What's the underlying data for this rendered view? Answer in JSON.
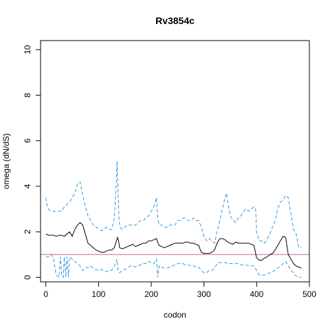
{
  "chart_data": {
    "type": "line",
    "title": "Rv3854c",
    "xlabel": "codon",
    "ylabel": "omega (dN/dS)",
    "xlim": [
      -10,
      500
    ],
    "ylim": [
      -0.2,
      10.4
    ],
    "xticks": [
      0,
      100,
      200,
      300,
      400,
      500
    ],
    "yticks": [
      0,
      2,
      4,
      6,
      8,
      10
    ],
    "grid": false,
    "reference_line": {
      "y": 1,
      "color": "#cc6699"
    },
    "colors": {
      "median": "#000000",
      "bounds": "#3399dd"
    },
    "series": [
      {
        "style": "solid",
        "x": [
          0,
          5,
          10,
          15,
          20,
          25,
          30,
          35,
          40,
          45,
          50,
          55,
          60,
          65,
          70,
          75,
          80,
          85,
          90,
          95,
          100,
          105,
          110,
          115,
          120,
          125,
          130,
          134,
          136,
          138,
          140,
          145,
          150,
          155,
          160,
          165,
          170,
          175,
          180,
          185,
          190,
          195,
          200,
          205,
          210,
          212,
          215,
          220,
          225,
          230,
          235,
          240,
          245,
          250,
          255,
          260,
          265,
          270,
          275,
          280,
          285,
          290,
          295,
          300,
          305,
          310,
          315,
          320,
          325,
          330,
          335,
          340,
          345,
          350,
          355,
          360,
          365,
          370,
          375,
          380,
          385,
          390,
          395,
          398,
          400,
          405,
          410,
          415,
          420,
          425,
          430,
          435,
          440,
          445,
          450,
          455,
          460,
          465,
          470,
          475,
          480,
          485
        ],
        "y": [
          1.9,
          1.85,
          1.85,
          1.85,
          1.8,
          1.85,
          1.85,
          1.8,
          1.9,
          2.0,
          1.8,
          2.1,
          2.3,
          2.4,
          2.3,
          1.9,
          1.5,
          1.4,
          1.3,
          1.2,
          1.15,
          1.1,
          1.1,
          1.15,
          1.2,
          1.2,
          1.3,
          1.6,
          1.75,
          1.6,
          1.3,
          1.25,
          1.3,
          1.35,
          1.4,
          1.45,
          1.35,
          1.4,
          1.45,
          1.5,
          1.5,
          1.6,
          1.6,
          1.65,
          1.7,
          1.55,
          1.4,
          1.35,
          1.3,
          1.35,
          1.4,
          1.45,
          1.5,
          1.5,
          1.5,
          1.5,
          1.55,
          1.55,
          1.5,
          1.5,
          1.45,
          1.4,
          1.1,
          1.05,
          1.05,
          1.05,
          1.1,
          1.2,
          1.5,
          1.7,
          1.7,
          1.65,
          1.55,
          1.5,
          1.45,
          1.55,
          1.5,
          1.5,
          1.5,
          1.5,
          1.5,
          1.45,
          1.4,
          1.05,
          0.85,
          0.75,
          0.75,
          0.85,
          0.9,
          1.0,
          1.05,
          1.2,
          1.4,
          1.6,
          1.8,
          1.75,
          1.0,
          0.8,
          0.6,
          0.5,
          0.45,
          0.4
        ]
      },
      {
        "style": "dashed",
        "x": [
          0,
          2,
          5,
          10,
          15,
          20,
          25,
          30,
          35,
          40,
          45,
          50,
          55,
          60,
          65,
          70,
          75,
          80,
          85,
          90,
          95,
          100,
          105,
          110,
          115,
          120,
          125,
          130,
          133,
          135,
          137,
          139,
          141,
          145,
          150,
          155,
          160,
          165,
          170,
          175,
          180,
          185,
          190,
          195,
          200,
          205,
          210,
          212,
          215,
          220,
          225,
          230,
          235,
          240,
          245,
          250,
          255,
          260,
          265,
          270,
          275,
          280,
          285,
          290,
          295,
          300,
          305,
          310,
          315,
          320,
          325,
          330,
          335,
          340,
          343,
          345,
          350,
          355,
          360,
          365,
          370,
          375,
          380,
          385,
          390,
          395,
          398,
          400,
          405,
          410,
          415,
          420,
          425,
          430,
          435,
          440,
          445,
          450,
          455,
          460,
          465,
          470,
          475,
          480,
          485
        ],
        "y": [
          3.5,
          3.2,
          3.0,
          2.9,
          2.9,
          2.9,
          2.9,
          2.9,
          3.1,
          3.2,
          3.3,
          3.5,
          3.7,
          4.1,
          4.2,
          3.6,
          3.1,
          2.7,
          2.5,
          2.3,
          2.2,
          2.15,
          2.05,
          2.1,
          2.2,
          2.1,
          2.1,
          2.6,
          3.8,
          5.1,
          3.8,
          2.5,
          2.2,
          2.1,
          2.2,
          2.3,
          2.3,
          2.3,
          2.3,
          2.4,
          2.5,
          2.5,
          2.6,
          2.7,
          2.9,
          3.1,
          3.5,
          2.7,
          2.3,
          2.3,
          2.2,
          2.2,
          2.3,
          2.3,
          2.3,
          2.5,
          2.5,
          2.6,
          2.6,
          2.5,
          2.5,
          2.6,
          2.5,
          2.5,
          2.2,
          1.8,
          1.6,
          1.7,
          1.6,
          1.5,
          2.0,
          2.5,
          3.0,
          3.5,
          3.7,
          3.3,
          2.7,
          2.5,
          2.4,
          2.6,
          2.7,
          2.9,
          3.0,
          2.9,
          3.0,
          3.1,
          3.0,
          2.0,
          1.6,
          1.6,
          1.5,
          1.7,
          1.9,
          2.2,
          2.5,
          3.0,
          3.3,
          3.4,
          3.6,
          3.5,
          2.8,
          2.1,
          1.9,
          1.3,
          1.3
        ]
      },
      {
        "style": "dashed",
        "x": [
          0,
          5,
          10,
          15,
          18,
          20,
          25,
          28,
          30,
          33,
          35,
          38,
          40,
          43,
          45,
          50,
          55,
          60,
          65,
          70,
          75,
          80,
          85,
          90,
          95,
          100,
          105,
          110,
          115,
          120,
          125,
          130,
          135,
          137,
          140,
          145,
          150,
          155,
          160,
          165,
          170,
          175,
          180,
          185,
          190,
          195,
          200,
          205,
          210,
          212,
          215,
          220,
          225,
          230,
          235,
          240,
          245,
          250,
          255,
          260,
          265,
          270,
          275,
          280,
          285,
          290,
          295,
          300,
          305,
          310,
          315,
          320,
          325,
          330,
          335,
          340,
          345,
          350,
          355,
          360,
          365,
          370,
          375,
          380,
          385,
          390,
          395,
          400,
          405,
          410,
          415,
          420,
          425,
          430,
          435,
          440,
          445,
          450,
          455,
          460,
          465,
          470,
          475,
          480,
          485
        ],
        "y": [
          0.9,
          0.9,
          1.0,
          0.8,
          0.3,
          0.1,
          0.0,
          0.9,
          0.1,
          0.0,
          0.9,
          0.0,
          0.9,
          0.0,
          0.9,
          0.8,
          0.7,
          0.6,
          0.5,
          0.3,
          0.4,
          0.45,
          0.5,
          0.4,
          0.35,
          0.3,
          0.35,
          0.3,
          0.25,
          0.3,
          0.3,
          0.5,
          0.8,
          0.3,
          0.2,
          0.3,
          0.35,
          0.4,
          0.5,
          0.5,
          0.45,
          0.5,
          0.55,
          0.6,
          0.6,
          0.7,
          0.65,
          0.6,
          0.8,
          0.0,
          0.5,
          0.45,
          0.4,
          0.4,
          0.45,
          0.5,
          0.55,
          0.6,
          0.6,
          0.6,
          0.55,
          0.55,
          0.5,
          0.5,
          0.45,
          0.45,
          0.3,
          0.2,
          0.2,
          0.3,
          0.3,
          0.4,
          0.6,
          0.65,
          0.65,
          0.65,
          0.6,
          0.6,
          0.6,
          0.6,
          0.6,
          0.55,
          0.55,
          0.55,
          0.5,
          0.5,
          0.5,
          0.3,
          0.1,
          0.1,
          0.1,
          0.15,
          0.2,
          0.25,
          0.3,
          0.4,
          0.5,
          0.6,
          0.7,
          0.5,
          0.3,
          0.2,
          0.05,
          0.0,
          0.0
        ]
      }
    ]
  }
}
